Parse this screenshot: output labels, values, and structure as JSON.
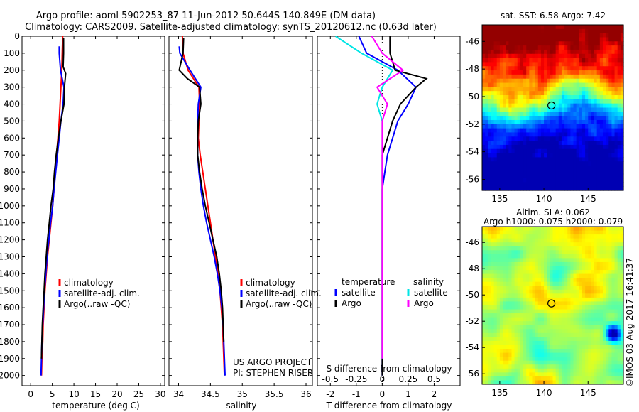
{
  "title": {
    "line1": "Argo profile: aoml 5902253_87 11-Jun-2012 50.644S 140.849E (DM data)",
    "line2": "Climatology: CARS2009. Satellite-adjusted climatology: synTS_20120612.nc (0.63d later)"
  },
  "credits": {
    "project": "US ARGO PROJECT",
    "pi": "PI: STEPHEN RISER",
    "imos": "©IMOS 03-Aug-2017 16:41:37"
  },
  "colors": {
    "climatology": "#ff0000",
    "satellite": "#0000ff",
    "argo": "#000000",
    "salinity_satellite": "#00e5e5",
    "salinity_argo": "#ff00ff",
    "float_marker": "#000000"
  },
  "chart_data": [
    {
      "type": "line",
      "name": "temperature",
      "xlabel": "temperature (deg C)",
      "ylabel": "",
      "xlim": [
        -2,
        31
      ],
      "ylim": [
        2060,
        0
      ],
      "xticks": [
        "0",
        "5",
        "10",
        "15",
        "20",
        "25",
        "30"
      ],
      "yticks": [
        "0",
        "100",
        "200",
        "300",
        "400",
        "500",
        "600",
        "700",
        "800",
        "900",
        "1000",
        "1100",
        "1200",
        "1300",
        "1400",
        "1500",
        "1600",
        "1700",
        "1800",
        "1900",
        "2000"
      ],
      "legend": [
        "climatology",
        "satellite-adj. clim.",
        "Argo(..raw -QC)"
      ],
      "legend_position": "lower-right",
      "series": [
        {
          "name": "climatology",
          "color": "#ff0000",
          "x": [
            7.4,
            7.3,
            7.2,
            7.0,
            6.8,
            6.6,
            6.3,
            6.0,
            5.7,
            5.4,
            5.1,
            4.7,
            4.3,
            3.9,
            3.6,
            3.3,
            3.1,
            2.9,
            2.8,
            2.6,
            2.5
          ],
          "y": [
            0,
            100,
            200,
            300,
            400,
            500,
            600,
            700,
            800,
            900,
            1000,
            1100,
            1200,
            1300,
            1400,
            1500,
            1600,
            1700,
            1800,
            1900,
            2000
          ]
        },
        {
          "name": "satellite-adj. clim.",
          "color": "#0000ff",
          "x": [
            6.6,
            6.6,
            6.9,
            7.7,
            7.5,
            7.0,
            6.6,
            6.2,
            5.8,
            5.4,
            5.1,
            4.6,
            4.2,
            3.8,
            3.5,
            3.2,
            3.0,
            2.8,
            2.6,
            2.5,
            2.4
          ],
          "y": [
            60,
            100,
            200,
            300,
            400,
            500,
            600,
            700,
            800,
            900,
            1000,
            1100,
            1200,
            1300,
            1400,
            1500,
            1600,
            1700,
            1800,
            1900,
            2000
          ]
        },
        {
          "name": "Argo(..raw -QC)",
          "color": "#000000",
          "x": [
            7.6,
            7.6,
            7.5,
            8.1,
            7.8,
            7.7,
            7.0,
            6.4,
            5.9,
            5.5,
            5.2,
            4.7,
            4.3,
            3.9,
            3.6,
            3.3,
            3.1,
            2.9,
            2.7,
            2.6,
            2.5
          ],
          "y": [
            10,
            100,
            180,
            220,
            300,
            400,
            500,
            600,
            700,
            800,
            900,
            1000,
            1100,
            1200,
            1300,
            1400,
            1500,
            1600,
            1700,
            1800,
            1900
          ]
        }
      ]
    },
    {
      "type": "line",
      "name": "salinity",
      "xlabel": "salinity",
      "ylabel": "",
      "xlim": [
        33.85,
        36.1
      ],
      "ylim": [
        2060,
        0
      ],
      "xticks": [
        "34",
        "34.5",
        "35",
        "35.5",
        "36"
      ],
      "legend": [
        "climatology",
        "satellite-adj. clim.",
        "Argo(..raw -QC)"
      ],
      "legend_position": "lower-right",
      "series": [
        {
          "name": "climatology",
          "color": "#ff0000",
          "x": [
            34.06,
            34.07,
            34.15,
            34.32,
            34.33,
            34.32,
            34.31,
            34.34,
            34.38,
            34.42,
            34.46,
            34.5,
            34.54,
            34.58,
            34.62,
            34.65,
            34.67,
            34.69,
            34.7,
            34.71,
            34.72
          ],
          "y": [
            0,
            100,
            200,
            300,
            400,
            500,
            600,
            700,
            800,
            900,
            1000,
            1100,
            1200,
            1300,
            1400,
            1500,
            1600,
            1700,
            1800,
            1900,
            2000
          ]
        },
        {
          "name": "satellite-adj. clim.",
          "color": "#0000ff",
          "x": [
            34.01,
            34.02,
            34.18,
            34.35,
            34.31,
            34.3,
            34.3,
            34.3,
            34.32,
            34.35,
            34.39,
            34.44,
            34.5,
            34.56,
            34.61,
            34.65,
            34.68,
            34.7,
            34.71,
            34.72,
            34.73
          ],
          "y": [
            60,
            100,
            200,
            300,
            400,
            500,
            600,
            700,
            800,
            900,
            1000,
            1100,
            1200,
            1300,
            1400,
            1500,
            1600,
            1700,
            1800,
            1900,
            2000
          ]
        },
        {
          "name": "Argo(..raw -QC)",
          "color": "#000000",
          "x": [
            34.08,
            34.07,
            34.01,
            34.14,
            34.33,
            34.35,
            34.31,
            34.3,
            34.3,
            34.33,
            34.37,
            34.42,
            34.48,
            34.54,
            34.6,
            34.64,
            34.67,
            34.69,
            34.7,
            34.71
          ],
          "y": [
            10,
            100,
            200,
            250,
            300,
            400,
            500,
            600,
            700,
            800,
            900,
            1000,
            1100,
            1200,
            1300,
            1400,
            1500,
            1600,
            1700,
            1800
          ]
        }
      ]
    },
    {
      "type": "line",
      "name": "difference from climatology",
      "xlabel": "T difference from climatology",
      "x2label": "S difference from climatology",
      "ylabel": "",
      "xlim": [
        -2.5,
        3.0
      ],
      "ylim": [
        2060,
        0
      ],
      "xticks": [
        "-2",
        "-1",
        "0",
        "1",
        "2"
      ],
      "x2ticks": [
        "-0.5",
        "-0.25",
        "0",
        "0.25",
        "0.5"
      ],
      "zero_line": true,
      "legend_temperature_title": "temperature",
      "legend_salinity_title": "salinity",
      "legend": [
        "satellite",
        "Argo"
      ],
      "legend_position": "lower",
      "series": [
        {
          "name": "satellite (temperature)",
          "color": "#0000ff",
          "x": [
            -0.9,
            -0.6,
            0.6,
            1.3,
            1.0,
            0.6,
            0.4,
            0.2,
            0.1,
            0.0,
            0.0,
            0.0,
            0.0,
            0.0,
            0.0,
            0.0,
            0.0,
            0.0,
            0.0,
            0.0
          ],
          "y": [
            0,
            100,
            200,
            300,
            400,
            500,
            600,
            700,
            800,
            900,
            1000,
            1200,
            1300,
            1400,
            1500,
            1600,
            1700,
            1800,
            1900,
            2000
          ]
        },
        {
          "name": "Argo (temperature)",
          "color": "#000000",
          "x": [
            0.3,
            0.3,
            0.5,
            1.7,
            1.3,
            0.7,
            0.4,
            0.2,
            0.0,
            0.0,
            0.0,
            0.0,
            0.0,
            0.0,
            0.0,
            0.0,
            0.0,
            0.0,
            0.0,
            0.0
          ],
          "y": [
            0,
            100,
            200,
            250,
            300,
            400,
            500,
            600,
            700,
            800,
            900,
            1000,
            1200,
            1400,
            1500,
            1600,
            1700,
            1800,
            1900,
            2000
          ]
        },
        {
          "name": "satellite (salinity)",
          "color": "#00e5e5",
          "x": [
            -0.45,
            -0.2,
            0.1,
            0.0,
            -0.05,
            0.0,
            0.0,
            0.0,
            0.0,
            0.0,
            0.0,
            0.0,
            0.0,
            0.0,
            0.0,
            0.0,
            0.0,
            0.0,
            0.0,
            0.0
          ],
          "y": [
            0,
            100,
            200,
            300,
            400,
            500,
            600,
            700,
            800,
            900,
            1000,
            1100,
            1200,
            1300,
            1400,
            1500,
            1600,
            1700,
            1800,
            1900
          ]
        },
        {
          "name": "Argo (salinity)",
          "color": "#ff00ff",
          "x": [
            -0.1,
            0.0,
            0.2,
            -0.05,
            0.05,
            0.0,
            0.0,
            0.0,
            0.0,
            0.0,
            0.0,
            0.0,
            0.0,
            0.0,
            0.0,
            0.0,
            0.0,
            0.0,
            0.0,
            0.0
          ],
          "y": [
            0,
            100,
            200,
            300,
            400,
            500,
            600,
            700,
            800,
            900,
            1000,
            1100,
            1200,
            1300,
            1400,
            1500,
            1600,
            1700,
            1800,
            1900
          ]
        }
      ]
    },
    {
      "type": "heatmap",
      "name": "sea surface temperature map",
      "title": "sat. SST: 6.58 Argo: 7.42",
      "xlim": [
        133,
        149
      ],
      "ylim": [
        -56.8,
        -44.8
      ],
      "xticks": [
        "135",
        "140",
        "145"
      ],
      "yticks": [
        "-46",
        "-48",
        "-50",
        "-52",
        "-54",
        "-56"
      ],
      "float_position": {
        "lon": 140.849,
        "lat": -50.644
      }
    },
    {
      "type": "heatmap",
      "name": "sea level anomaly map",
      "title": "Altim. SLA: 0.062",
      "subtitle": "Argo h1000: 0.075 h2000: 0.079",
      "xlim": [
        133,
        149
      ],
      "ylim": [
        -56.8,
        -44.8
      ],
      "xticks": [
        "135",
        "140",
        "145"
      ],
      "yticks": [
        "-46",
        "-48",
        "-50",
        "-52",
        "-54",
        "-56"
      ],
      "float_position": {
        "lon": 140.849,
        "lat": -50.644
      }
    }
  ]
}
